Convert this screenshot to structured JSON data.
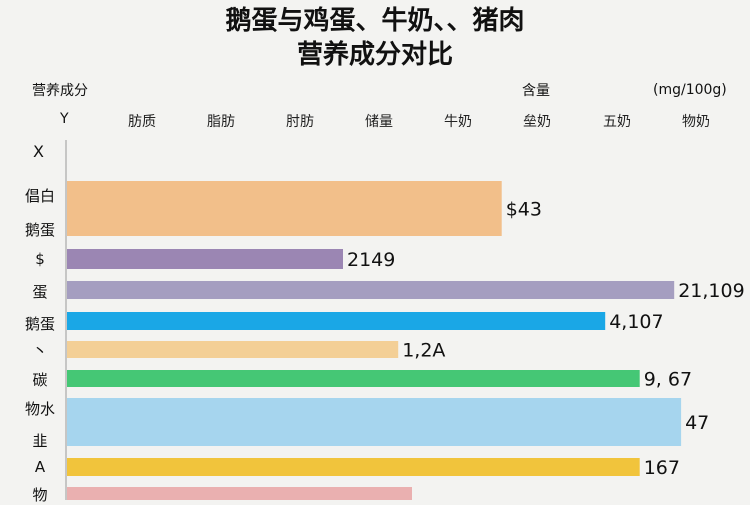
{
  "header": {
    "title_line1": "鹅蛋与鸡蛋、牛奶、、猪肉",
    "title_line2": "营养成分对比",
    "left_label": "营养成分",
    "mid_label": "含量",
    "unit_label": "(mg/100g)",
    "y_axis_label": "Y",
    "x_label": "X"
  },
  "columns": [
    "肪质",
    "脂肪",
    "肘肪",
    "储量",
    "牛奶",
    "垒奶",
    "五奶",
    "物奶"
  ],
  "y_labels": [
    "倡白",
    "鹅蛋",
    "$",
    "蛋",
    "鹅蛋",
    "丶",
    "碳",
    "物水",
    "韭",
    "A",
    "物"
  ],
  "colors": {
    "background": "#f3f3f1",
    "axis": "#999999"
  },
  "chart_data": {
    "type": "bar",
    "orientation": "horizontal",
    "title": "鹅蛋与鸡蛋、牛奶、、猪肉 营养成分对比",
    "unit": "(mg/100g)",
    "bars": [
      {
        "value_label": "$43",
        "length": 0.63,
        "color": "#f2bf8a"
      },
      {
        "value_label": "2149",
        "length": 0.4,
        "color": "#9b86b3"
      },
      {
        "value_label": "21,109",
        "length": 0.88,
        "color": "#a59ec0"
      },
      {
        "value_label": "4,107",
        "length": 0.78,
        "color": "#1aa7e6"
      },
      {
        "value_label": "1,2A",
        "length": 0.48,
        "color": "#f3cf96"
      },
      {
        "value_label": "9, 67",
        "length": 0.83,
        "color": "#45c775"
      },
      {
        "value_label": "47",
        "length": 0.89,
        "color": "#a6d5ee"
      },
      {
        "value_label": "167",
        "length": 0.83,
        "color": "#f1c43c"
      },
      {
        "value_label": "",
        "length": 0.5,
        "color": "#eab0b0"
      }
    ]
  }
}
